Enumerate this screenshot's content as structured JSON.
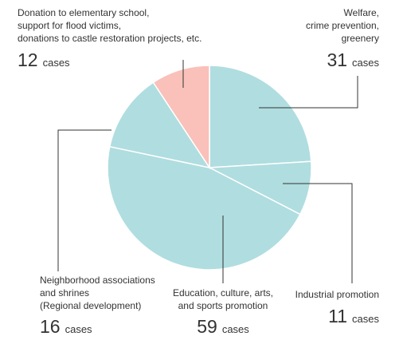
{
  "chart_data": {
    "type": "pie",
    "categories": [
      [
        "Welfare,",
        "crime prevention,",
        "greenery"
      ],
      [
        "Industrial promotion"
      ],
      [
        "Education, culture, arts,",
        "and sports promotion"
      ],
      [
        "Neighborhood associations",
        "and shrines",
        "(Regional development)"
      ],
      [
        "Donation to elementary school,",
        "support for flood victims,",
        "donations to castle restoration projects, etc."
      ]
    ],
    "values": [
      31,
      11,
      59,
      16,
      12
    ],
    "unit": "cases",
    "colors": [
      "#b0dde0",
      "#b0dde0",
      "#b0dde0",
      "#b0dde0",
      "#f9c1b9"
    ]
  }
}
